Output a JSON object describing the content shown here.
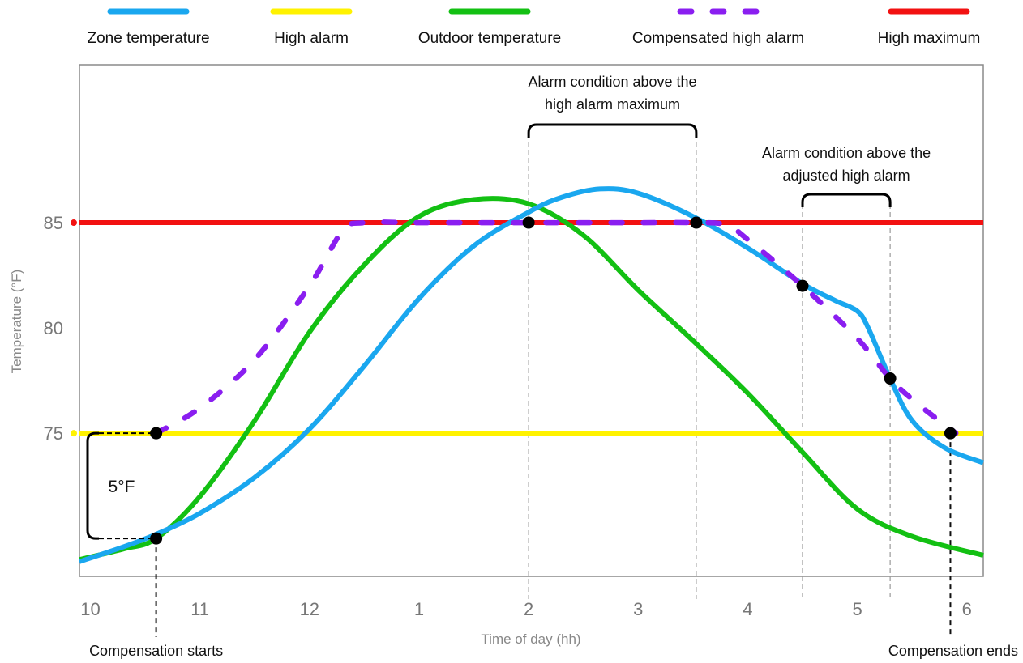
{
  "chart_data": {
    "type": "line",
    "xlabel": "Time of day (hh)",
    "ylabel": "Temperature (°F)",
    "x_ticks": [
      {
        "x": 10,
        "label": "10"
      },
      {
        "x": 11,
        "label": "11"
      },
      {
        "x": 12,
        "label": "12"
      },
      {
        "x": 13,
        "label": "1"
      },
      {
        "x": 14,
        "label": "2"
      },
      {
        "x": 15,
        "label": "3"
      },
      {
        "x": 16,
        "label": "4"
      },
      {
        "x": 17,
        "label": "5"
      },
      {
        "x": 18,
        "label": "6"
      }
    ],
    "y_ticks": [
      75,
      80,
      85
    ],
    "xlim": [
      9.9,
      18.15
    ],
    "ylim": [
      68.2,
      92.5
    ],
    "legend_position": "top",
    "series": [
      {
        "key": "zone",
        "name": "Zone temperature",
        "color": "#1aa7ef",
        "style": "solid",
        "x": [
          9.9,
          10.3,
          10.6,
          11.0,
          11.5,
          12.0,
          12.5,
          13.0,
          13.5,
          14.0,
          14.3,
          14.65,
          15.0,
          15.5,
          16.0,
          16.5,
          16.8,
          17.0,
          17.1,
          17.3,
          17.5,
          17.8,
          18.15
        ],
        "y": [
          68.9,
          69.6,
          70.2,
          71.2,
          72.9,
          75.2,
          78.2,
          81.4,
          83.9,
          85.5,
          86.2,
          86.6,
          86.4,
          85.3,
          83.8,
          82.1,
          81.3,
          80.8,
          80.0,
          77.6,
          75.6,
          74.3,
          73.6
        ]
      },
      {
        "key": "high_alarm",
        "name": "High alarm",
        "color": "#fff200",
        "style": "solid",
        "x": [
          9.9,
          18.15
        ],
        "y": [
          75,
          75
        ]
      },
      {
        "key": "outdoor",
        "name": "Outdoor temperature",
        "color": "#13c013",
        "style": "solid",
        "x": [
          9.9,
          10.3,
          10.6,
          11.0,
          11.5,
          12.0,
          12.5,
          13.0,
          13.5,
          14.0,
          14.5,
          15.0,
          15.5,
          16.0,
          16.5,
          17.0,
          17.5,
          18.15
        ],
        "y": [
          69.0,
          69.5,
          70.0,
          72.0,
          75.6,
          79.8,
          83.0,
          85.3,
          86.1,
          85.9,
          84.4,
          81.8,
          79.4,
          76.9,
          74.1,
          71.4,
          70.1,
          69.2
        ]
      },
      {
        "key": "comp_alarm",
        "name": "Compensated high alarm",
        "color": "#8a1ef0",
        "style": "dashed",
        "x": [
          10.6,
          11.0,
          11.5,
          12.0,
          12.3,
          12.5,
          13.0,
          14.0,
          15.0,
          15.5,
          15.8,
          16.0,
          16.5,
          17.0,
          17.3,
          17.55,
          17.9
        ],
        "y": [
          75.0,
          76.2,
          78.5,
          82.0,
          84.6,
          85.0,
          85.0,
          85.0,
          85.0,
          85.0,
          84.9,
          84.2,
          82.0,
          79.5,
          77.6,
          76.4,
          75.0
        ]
      },
      {
        "key": "high_max",
        "name": "High maximum",
        "color": "#f21111",
        "style": "solid",
        "x": [
          9.9,
          18.15
        ],
        "y": [
          85,
          85
        ]
      }
    ],
    "markers": [
      {
        "x": 10.6,
        "y": 75.0
      },
      {
        "x": 10.6,
        "y": 70.0
      },
      {
        "x": 14.0,
        "y": 85.0
      },
      {
        "x": 15.53,
        "y": 85.0
      },
      {
        "x": 16.5,
        "y": 82.0
      },
      {
        "x": 17.3,
        "y": 77.6
      },
      {
        "x": 17.85,
        "y": 75.0
      }
    ],
    "annotations": [
      {
        "key": "above_max",
        "lines": [
          "Alarm condition above the",
          "high alarm maximum"
        ],
        "x_from": 14.0,
        "x_to": 15.53
      },
      {
        "key": "above_adjusted",
        "lines": [
          "Alarm condition above the",
          "adjusted high alarm"
        ],
        "x_from": 16.5,
        "x_to": 17.3
      },
      {
        "key": "difference",
        "text": "5°F",
        "y_from": 70.0,
        "y_to": 75.0
      },
      {
        "key": "comp_start",
        "text": "Compensation starts",
        "x": 10.6
      },
      {
        "key": "comp_end",
        "text": "Compensation ends",
        "x": 17.85
      }
    ]
  }
}
